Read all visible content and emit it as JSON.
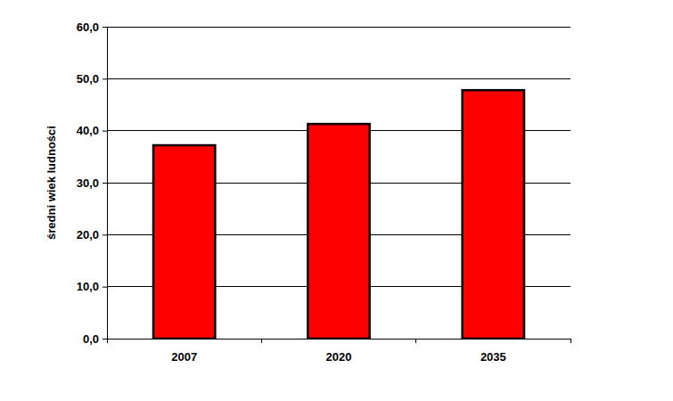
{
  "chart_data": {
    "type": "bar",
    "y_label": "średni wiek ludności",
    "categories": [
      "2007",
      "2020",
      "2035"
    ],
    "values": [
      37.2,
      41.3,
      47.8
    ],
    "color": "#ff0000",
    "ylim": [
      0,
      60
    ],
    "yticks": [
      {
        "value": 0,
        "label": "0,0"
      },
      {
        "value": 10,
        "label": "10,0"
      },
      {
        "value": 20,
        "label": "20,0"
      },
      {
        "value": 30,
        "label": "30,0"
      },
      {
        "value": 40,
        "label": "40,0"
      },
      {
        "value": 50,
        "label": "50,0"
      },
      {
        "value": 60,
        "label": "60,0"
      }
    ],
    "grid": true
  }
}
